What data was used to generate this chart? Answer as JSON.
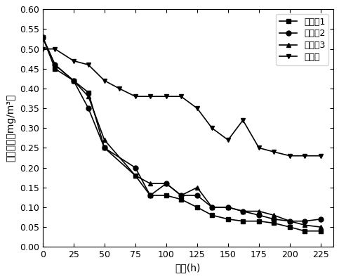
{
  "series": [
    {
      "label": "实施例1",
      "marker": "s",
      "x": [
        0,
        10,
        25,
        37,
        50,
        75,
        87,
        100,
        112,
        125,
        137,
        150,
        162,
        175,
        187,
        200,
        212,
        225
      ],
      "y": [
        0.53,
        0.45,
        0.42,
        0.39,
        0.25,
        0.18,
        0.13,
        0.13,
        0.12,
        0.1,
        0.08,
        0.07,
        0.065,
        0.065,
        0.06,
        0.05,
        0.04,
        0.04
      ]
    },
    {
      "label": "实施例2",
      "marker": "o",
      "x": [
        0,
        10,
        25,
        37,
        50,
        75,
        87,
        100,
        112,
        125,
        137,
        150,
        162,
        175,
        187,
        200,
        212,
        225
      ],
      "y": [
        0.53,
        0.46,
        0.42,
        0.35,
        0.25,
        0.2,
        0.13,
        0.16,
        0.13,
        0.13,
        0.1,
        0.1,
        0.09,
        0.08,
        0.07,
        0.065,
        0.065,
        0.07
      ]
    },
    {
      "label": "实施例3",
      "marker": "^",
      "x": [
        0,
        10,
        25,
        37,
        50,
        75,
        87,
        100,
        112,
        125,
        137,
        150,
        162,
        175,
        187,
        200,
        212,
        225
      ],
      "y": [
        0.53,
        0.46,
        0.42,
        0.38,
        0.27,
        0.18,
        0.16,
        0.16,
        0.13,
        0.15,
        0.1,
        0.1,
        0.09,
        0.09,
        0.08,
        0.065,
        0.055,
        0.05
      ]
    },
    {
      "label": "对照例",
      "marker": "v",
      "x": [
        0,
        10,
        25,
        37,
        50,
        62,
        75,
        87,
        100,
        112,
        125,
        137,
        150,
        162,
        175,
        187,
        200,
        212,
        225
      ],
      "y": [
        0.5,
        0.5,
        0.47,
        0.46,
        0.42,
        0.4,
        0.38,
        0.38,
        0.38,
        0.38,
        0.35,
        0.3,
        0.27,
        0.32,
        0.25,
        0.24,
        0.23,
        0.23,
        0.23
      ]
    }
  ],
  "xlabel": "时间(h)",
  "ylabel": "甲醒浓度（mg/m³）",
  "ylabel_line1": "甲醒浓度",
  "ylabel_line2": "(mg/m³)",
  "xlim": [
    0,
    235
  ],
  "ylim": [
    0.0,
    0.6
  ],
  "xticks": [
    0,
    25,
    50,
    75,
    100,
    125,
    150,
    175,
    200,
    225
  ],
  "yticks": [
    0.0,
    0.05,
    0.1,
    0.15,
    0.2,
    0.25,
    0.3,
    0.35,
    0.4,
    0.45,
    0.5,
    0.55,
    0.6
  ],
  "color": "#000000",
  "linewidth": 1.2,
  "markersize": 5
}
